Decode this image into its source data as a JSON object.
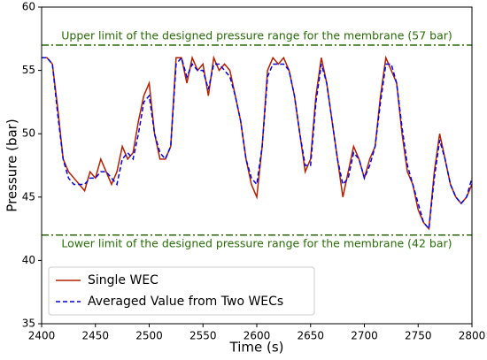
{
  "chart_data": {
    "type": "line",
    "xlabel": "Time (s)",
    "ylabel": "Pressure (bar)",
    "x": [
      2400,
      2405,
      2410,
      2415,
      2420,
      2425,
      2430,
      2435,
      2440,
      2445,
      2450,
      2455,
      2460,
      2465,
      2470,
      2475,
      2480,
      2485,
      2490,
      2495,
      2500,
      2505,
      2510,
      2515,
      2520,
      2525,
      2530,
      2535,
      2540,
      2545,
      2550,
      2555,
      2560,
      2565,
      2570,
      2575,
      2580,
      2585,
      2590,
      2595,
      2600,
      2605,
      2610,
      2615,
      2620,
      2625,
      2630,
      2635,
      2640,
      2645,
      2650,
      2655,
      2660,
      2665,
      2670,
      2675,
      2680,
      2685,
      2690,
      2695,
      2700,
      2705,
      2710,
      2715,
      2720,
      2725,
      2730,
      2735,
      2740,
      2745,
      2750,
      2755,
      2760,
      2765,
      2770,
      2775,
      2780,
      2785,
      2790,
      2795,
      2800
    ],
    "series": [
      {
        "name": "Single WEC",
        "color": "#b22000",
        "dash": false,
        "values": [
          56,
          56,
          55.5,
          52,
          48,
          47,
          46.5,
          46,
          45.5,
          47,
          46.5,
          48,
          47,
          46,
          47,
          49,
          48,
          48.5,
          51,
          53,
          54,
          50,
          48,
          48,
          49,
          56,
          56,
          54,
          56,
          55,
          55.5,
          53,
          56,
          55,
          55.5,
          55,
          53,
          51,
          48,
          46,
          45,
          49,
          55,
          56,
          55.5,
          56,
          55,
          53,
          50,
          47,
          48,
          53,
          56,
          54,
          51,
          48,
          45,
          47,
          49,
          48,
          46.5,
          48,
          49,
          53,
          56,
          55,
          54,
          50,
          47,
          46,
          44,
          43,
          42.5,
          47,
          50,
          48,
          46,
          45,
          44.5,
          45,
          46
        ]
      },
      {
        "name": "Averaged Value from Two WECs",
        "color": "#0000e6",
        "dash": true,
        "values": [
          56,
          56,
          55.5,
          51.5,
          48,
          46.5,
          46,
          46,
          46,
          46.5,
          46.5,
          47,
          47,
          46.5,
          46,
          48,
          48.5,
          48,
          50,
          52.5,
          53,
          50,
          48.5,
          48,
          49,
          55.5,
          56,
          54.5,
          55.5,
          55,
          55,
          53.5,
          55.5,
          55.5,
          55,
          54.5,
          53,
          51,
          48,
          46.5,
          46,
          49,
          54.5,
          55.5,
          55.5,
          55.5,
          55,
          53,
          50,
          47.5,
          47.5,
          52.5,
          55.5,
          54,
          51,
          48,
          46,
          46.5,
          48.5,
          48,
          46.5,
          47.5,
          49,
          52.5,
          55.5,
          55.5,
          54,
          50.5,
          47.5,
          46,
          44.5,
          43,
          42.5,
          46.5,
          49.5,
          48,
          46,
          45,
          44.5,
          45,
          46.5
        ]
      }
    ],
    "hlines": [
      {
        "value": 57,
        "label": "Upper limit of the designed pressure range for the membrane (57 bar)",
        "color": "#2a6b0a"
      },
      {
        "value": 42,
        "label": "Lower limit of the designed pressure range for the membrane (42 bar)",
        "color": "#2a6b0a"
      }
    ],
    "xlim": [
      2400,
      2800
    ],
    "xticks": [
      2400,
      2450,
      2500,
      2550,
      2600,
      2650,
      2700,
      2750,
      2800
    ],
    "ylim": [
      35,
      60
    ],
    "yticks": [
      35,
      40,
      45,
      50,
      55,
      60
    ],
    "legend": "lower left"
  }
}
